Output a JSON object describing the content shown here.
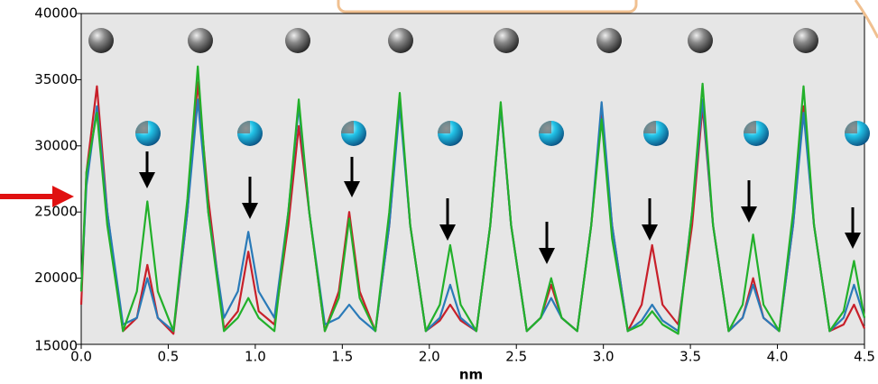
{
  "chart_data": {
    "type": "line",
    "x_label": "nm",
    "x": [
      0.0,
      0.03,
      0.09,
      0.15,
      0.24,
      0.32,
      0.38,
      0.44,
      0.53,
      0.61,
      0.67,
      0.73,
      0.82,
      0.9,
      0.96,
      1.02,
      1.11,
      1.19,
      1.25,
      1.31,
      1.4,
      1.48,
      1.54,
      1.6,
      1.69,
      1.77,
      1.83,
      1.89,
      1.98,
      2.06,
      2.12,
      2.18,
      2.27,
      2.35,
      2.41,
      2.47,
      2.56,
      2.64,
      2.7,
      2.76,
      2.85,
      2.93,
      2.99,
      3.05,
      3.14,
      3.22,
      3.28,
      3.34,
      3.43,
      3.51,
      3.57,
      3.63,
      3.72,
      3.8,
      3.86,
      3.92,
      4.01,
      4.09,
      4.15,
      4.21,
      4.3,
      4.38,
      4.44,
      4.5
    ],
    "series": [
      {
        "color": "#c8202a",
        "values": [
          18000,
          28000,
          34500,
          25000,
          16000,
          17000,
          21000,
          17000,
          15800,
          25000,
          34800,
          26000,
          16200,
          17500,
          22000,
          17500,
          16500,
          24000,
          31500,
          25000,
          16000,
          19000,
          25000,
          19000,
          16000,
          24000,
          33500,
          24000,
          16000,
          16800,
          18000,
          16800,
          16000,
          24000,
          33000,
          24000,
          16000,
          17000,
          19500,
          17000,
          16000,
          24000,
          32500,
          24000,
          16000,
          18000,
          22500,
          18000,
          16500,
          24000,
          33000,
          24000,
          16000,
          17000,
          20000,
          17000,
          16000,
          24000,
          33000,
          24000,
          16000,
          16500,
          18000,
          16200
        ]
      },
      {
        "color": "#2a7ab8",
        "values": [
          19000,
          27000,
          33000,
          25000,
          16500,
          17000,
          20000,
          17000,
          16000,
          25000,
          33500,
          25000,
          17000,
          19000,
          23500,
          19000,
          17000,
          25000,
          33000,
          25000,
          16500,
          17000,
          18000,
          17000,
          16000,
          24000,
          33000,
          24000,
          16000,
          17000,
          19500,
          17000,
          16000,
          24000,
          33000,
          24000,
          16000,
          17000,
          18500,
          17000,
          16000,
          24000,
          33300,
          24000,
          16000,
          16800,
          18000,
          16800,
          16000,
          25000,
          33500,
          24000,
          16000,
          17000,
          19500,
          17000,
          16000,
          24000,
          32500,
          24000,
          16000,
          17000,
          19500,
          17000
        ]
      },
      {
        "color": "#22b02a",
        "values": [
          19000,
          28000,
          32500,
          24000,
          16000,
          19000,
          25800,
          19000,
          16000,
          26000,
          36000,
          25000,
          16000,
          17000,
          18500,
          17000,
          16000,
          25000,
          33500,
          25000,
          16000,
          18500,
          24500,
          18500,
          16000,
          25000,
          34000,
          24000,
          16000,
          18000,
          22500,
          18000,
          16000,
          24000,
          33300,
          24000,
          16000,
          17000,
          20000,
          17000,
          16000,
          24000,
          32000,
          23000,
          16000,
          16500,
          17500,
          16500,
          15800,
          25000,
          34700,
          24000,
          16000,
          18000,
          23300,
          18000,
          16000,
          25000,
          34500,
          24000,
          16000,
          17500,
          21300,
          17000
        ]
      }
    ],
    "xlim": [
      0,
      4.5
    ],
    "ylim": [
      15000,
      40000
    ],
    "xticks": [
      {
        "value": 0,
        "label": "0.0"
      },
      {
        "value": 0.5,
        "label": "0.5"
      },
      {
        "value": 1,
        "label": "1.0"
      },
      {
        "value": 1.5,
        "label": "1.5"
      },
      {
        "value": 2,
        "label": "2.0"
      },
      {
        "value": 2.5,
        "label": "2.5"
      },
      {
        "value": 3,
        "label": "3.0"
      },
      {
        "value": 3.5,
        "label": "3.5"
      },
      {
        "value": 4,
        "label": "4.0"
      },
      {
        "value": 4.5,
        "label": "4.5"
      }
    ],
    "yticks": [
      15000,
      20000,
      25000,
      30000,
      35000,
      40000
    ]
  }
}
